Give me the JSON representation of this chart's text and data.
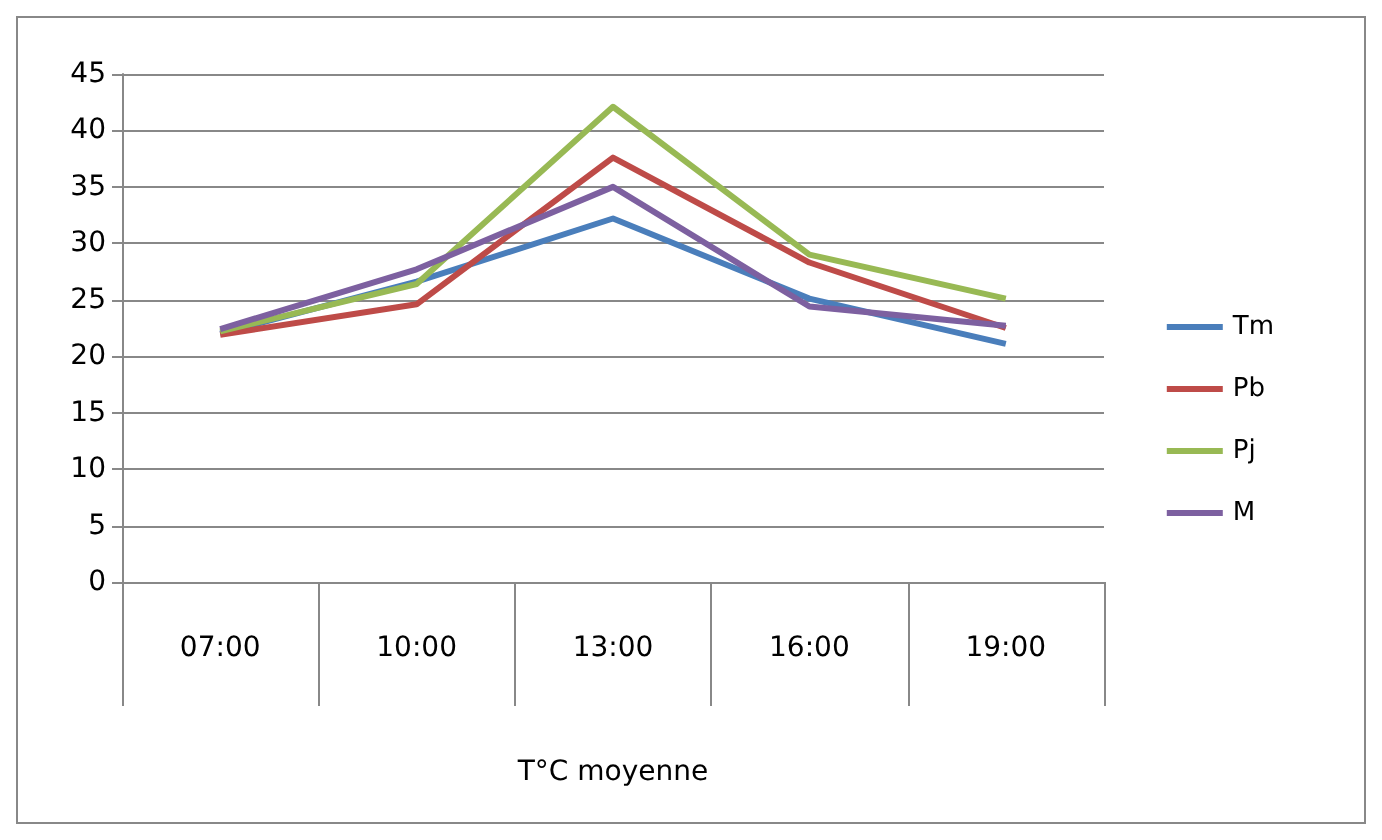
{
  "chart_data": {
    "type": "line",
    "xlabel": "T°C moyenne",
    "categories": [
      "07:00",
      "10:00",
      "13:00",
      "16:00",
      "19:00"
    ],
    "series": [
      {
        "name": "Tm",
        "color": "#4a7ebb",
        "values": [
          22.0,
          26.6,
          32.2,
          25.1,
          21.1
        ]
      },
      {
        "name": "Pb",
        "color": "#be4b48",
        "values": [
          21.9,
          24.6,
          37.6,
          28.3,
          22.5
        ]
      },
      {
        "name": "Pj",
        "color": "#98b954",
        "values": [
          22.2,
          26.4,
          42.1,
          29.0,
          25.1
        ]
      },
      {
        "name": "M",
        "color": "#7d60a0",
        "values": [
          22.4,
          27.7,
          35.0,
          24.4,
          22.7
        ]
      }
    ],
    "ylim": [
      0,
      45
    ],
    "yticks": [
      0,
      5,
      10,
      15,
      20,
      25,
      30,
      35,
      40,
      45
    ],
    "grid": "y",
    "legend": "right",
    "marker": "none",
    "line_style": "solid"
  }
}
